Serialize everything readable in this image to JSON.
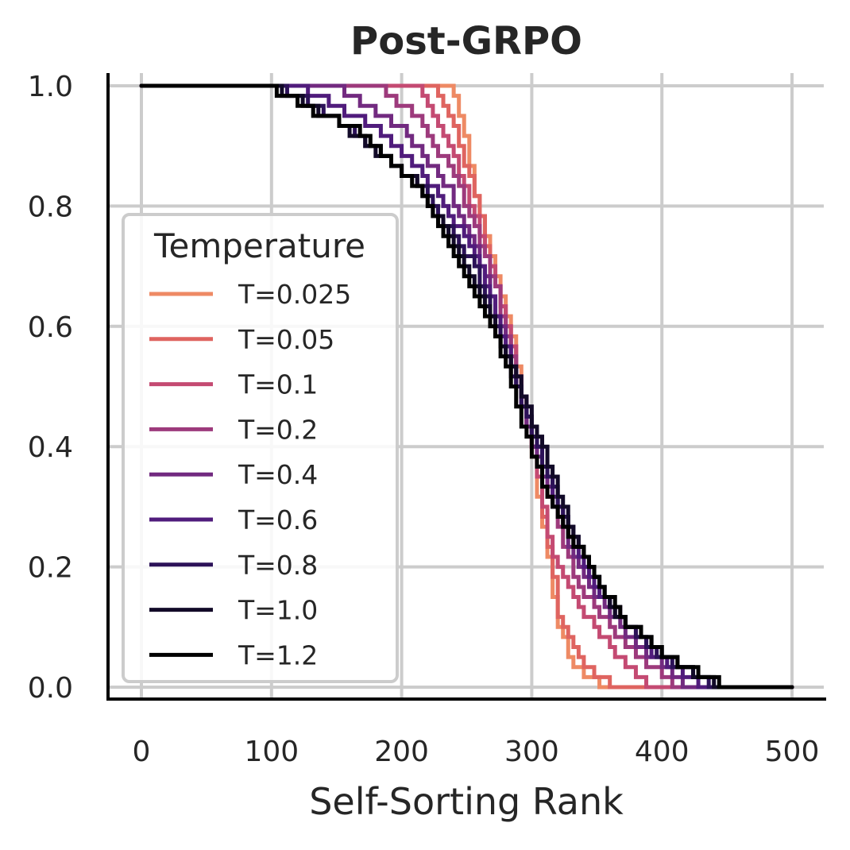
{
  "chart_data": {
    "type": "line",
    "title": "Post-GRPO",
    "xlabel": "Self-Sorting Rank",
    "ylabel": "",
    "xlim": [
      -25,
      525
    ],
    "ylim": [
      -0.02,
      1.02
    ],
    "xticks": [
      0,
      100,
      200,
      300,
      400,
      500
    ],
    "yticks": [
      0.0,
      0.2,
      0.4,
      0.6,
      0.8,
      1.0
    ],
    "xtick_labels": [
      "0",
      "100",
      "200",
      "300",
      "400",
      "500"
    ],
    "ytick_labels": [
      "0.0",
      "0.2",
      "0.4",
      "0.6",
      "0.8",
      "1.0"
    ],
    "grid": true,
    "legend": {
      "title": "Temperature",
      "placement": "center-left"
    },
    "series": [
      {
        "name": "T=0.025",
        "color": "#ee8a64",
        "points": [
          [
            0,
            1
          ],
          [
            237,
            1
          ],
          [
            245,
            0.95
          ],
          [
            258,
            0.8
          ],
          [
            270,
            0.7
          ],
          [
            282,
            0.6
          ],
          [
            299,
            0.4
          ],
          [
            305,
            0.3
          ],
          [
            313,
            0.2
          ],
          [
            320,
            0.1
          ],
          [
            330,
            0.04
          ],
          [
            355,
            0
          ],
          [
            500,
            0
          ]
        ]
      },
      {
        "name": "T=0.05",
        "color": "#df6460",
        "points": [
          [
            0,
            1
          ],
          [
            225,
            1
          ],
          [
            240,
            0.93
          ],
          [
            255,
            0.82
          ],
          [
            280,
            0.6
          ],
          [
            300,
            0.4
          ],
          [
            313,
            0.22
          ],
          [
            320,
            0.12
          ],
          [
            335,
            0.05
          ],
          [
            355,
            0.01
          ],
          [
            365,
            0
          ],
          [
            500,
            0
          ]
        ]
      },
      {
        "name": "T=0.1",
        "color": "#c44a72",
        "points": [
          [
            0,
            1
          ],
          [
            210,
            1
          ],
          [
            230,
            0.93
          ],
          [
            250,
            0.82
          ],
          [
            275,
            0.65
          ],
          [
            300,
            0.4
          ],
          [
            310,
            0.27
          ],
          [
            318,
            0.2
          ],
          [
            340,
            0.12
          ],
          [
            365,
            0.05
          ],
          [
            390,
            0
          ],
          [
            500,
            0
          ]
        ]
      },
      {
        "name": "T=0.2",
        "color": "#9d3a7c",
        "points": [
          [
            0,
            1
          ],
          [
            180,
            1
          ],
          [
            210,
            0.95
          ],
          [
            240,
            0.85
          ],
          [
            270,
            0.68
          ],
          [
            300,
            0.4
          ],
          [
            315,
            0.3
          ],
          [
            335,
            0.17
          ],
          [
            370,
            0.07
          ],
          [
            400,
            0.02
          ],
          [
            410,
            0
          ],
          [
            500,
            0
          ]
        ]
      },
      {
        "name": "T=0.4",
        "color": "#722a80",
        "points": [
          [
            0,
            1
          ],
          [
            150,
            1
          ],
          [
            200,
            0.93
          ],
          [
            235,
            0.83
          ],
          [
            265,
            0.68
          ],
          [
            300,
            0.4
          ],
          [
            320,
            0.28
          ],
          [
            345,
            0.16
          ],
          [
            380,
            0.07
          ],
          [
            420,
            0
          ],
          [
            500,
            0
          ]
        ]
      },
      {
        "name": "T=0.6",
        "color": "#501c7c",
        "points": [
          [
            0,
            1
          ],
          [
            120,
            1
          ],
          [
            180,
            0.93
          ],
          [
            225,
            0.83
          ],
          [
            260,
            0.7
          ],
          [
            300,
            0.42
          ],
          [
            325,
            0.27
          ],
          [
            350,
            0.16
          ],
          [
            390,
            0.06
          ],
          [
            430,
            0
          ],
          [
            500,
            0
          ]
        ]
      },
      {
        "name": "T=0.8",
        "color": "#2c1258",
        "points": [
          [
            0,
            1
          ],
          [
            105,
            1
          ],
          [
            160,
            0.93
          ],
          [
            215,
            0.83
          ],
          [
            255,
            0.7
          ],
          [
            300,
            0.42
          ],
          [
            330,
            0.25
          ],
          [
            360,
            0.13
          ],
          [
            400,
            0.05
          ],
          [
            440,
            0
          ],
          [
            500,
            0
          ]
        ]
      },
      {
        "name": "T=1.0",
        "color": "#120a28",
        "points": [
          [
            0,
            1
          ],
          [
            100,
            1
          ],
          [
            150,
            0.94
          ],
          [
            210,
            0.84
          ],
          [
            250,
            0.7
          ],
          [
            290,
            0.5
          ],
          [
            330,
            0.26
          ],
          [
            365,
            0.12
          ],
          [
            410,
            0.04
          ],
          [
            445,
            0
          ],
          [
            500,
            0
          ]
        ]
      },
      {
        "name": "T=1.2",
        "color": "#000000",
        "points": [
          [
            0,
            1
          ],
          [
            95,
            1
          ],
          [
            130,
            0.96
          ],
          [
            170,
            0.92
          ],
          [
            215,
            0.82
          ],
          [
            240,
            0.72
          ],
          [
            270,
            0.6
          ],
          [
            290,
            0.45
          ],
          [
            310,
            0.32
          ],
          [
            335,
            0.23
          ],
          [
            370,
            0.11
          ],
          [
            410,
            0.04
          ],
          [
            440,
            0.01
          ],
          [
            450,
            0
          ],
          [
            500,
            0
          ]
        ]
      }
    ]
  }
}
